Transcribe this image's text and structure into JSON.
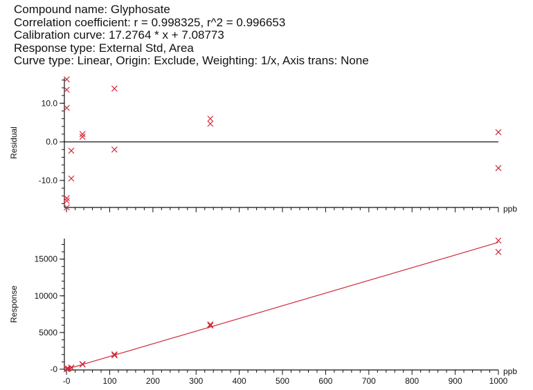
{
  "header": {
    "compound": "Compound name: Glyphosate",
    "correlation": "Correlation coefficient: r = 0.998325, r^2 = 0.996653",
    "calibration": "Calibration curve: 17.2764 * x + 7.08773",
    "response_type": "Response type: External Std, Area",
    "curve_type": "Curve type: Linear, Origin: Exclude, Weighting: 1/x, Axis trans: None"
  },
  "colors": {
    "marker": "#cc2b3a",
    "fit_line": "#cc2b3a",
    "axis": "#111111"
  },
  "chart_data": [
    {
      "type": "scatter",
      "ylabel": "Residual",
      "xunit": "ppb",
      "xlim": [
        -5,
        1000
      ],
      "ylim": [
        -17,
        16.5
      ],
      "yticks": [
        10.0,
        0.0,
        -10.0
      ],
      "ytick_labels": [
        "10.0",
        "0.0",
        "-10.0"
      ],
      "zero_line": true,
      "points": [
        {
          "x": 0.5,
          "y": 16.2
        },
        {
          "x": 0.5,
          "y": 13.5
        },
        {
          "x": 0.5,
          "y": 8.8
        },
        {
          "x": 0.5,
          "y": -14.6
        },
        {
          "x": 0.5,
          "y": -15.3
        },
        {
          "x": 0.5,
          "y": -17.0
        },
        {
          "x": 11,
          "y": -2.3
        },
        {
          "x": 11,
          "y": -9.5
        },
        {
          "x": 37,
          "y": 2.0
        },
        {
          "x": 37,
          "y": 1.3
        },
        {
          "x": 111,
          "y": 13.8
        },
        {
          "x": 111,
          "y": -2.0
        },
        {
          "x": 333,
          "y": 6.0
        },
        {
          "x": 333,
          "y": 4.7
        },
        {
          "x": 1000,
          "y": 2.5
        },
        {
          "x": 1000,
          "y": -6.8
        }
      ]
    },
    {
      "type": "scatter",
      "ylabel": "Response",
      "xunit": "ppb",
      "xlim": [
        -5,
        1000
      ],
      "ylim": [
        -100,
        17800
      ],
      "xticks": [
        0,
        100,
        200,
        300,
        400,
        500,
        600,
        700,
        800,
        900,
        1000
      ],
      "xtick_labels": [
        "-0",
        "100",
        "200",
        "300",
        "400",
        "500",
        "600",
        "700",
        "800",
        "900",
        "1000"
      ],
      "yticks": [
        15000,
        10000,
        5000,
        0
      ],
      "ytick_labels": [
        "15000",
        "10000",
        "5000",
        "-0"
      ],
      "fit": {
        "slope": 17.2764,
        "intercept": 7.08773
      },
      "points": [
        {
          "x": 0.5,
          "y": 10
        },
        {
          "x": 0.5,
          "y": 30
        },
        {
          "x": 0.5,
          "y": 60
        },
        {
          "x": 3.7,
          "y": 70
        },
        {
          "x": 3.7,
          "y": 90
        },
        {
          "x": 11,
          "y": 190
        },
        {
          "x": 11,
          "y": 230
        },
        {
          "x": 37,
          "y": 650
        },
        {
          "x": 37,
          "y": 700
        },
        {
          "x": 111,
          "y": 1900
        },
        {
          "x": 111,
          "y": 2030
        },
        {
          "x": 333,
          "y": 5950
        },
        {
          "x": 333,
          "y": 6100
        },
        {
          "x": 1000,
          "y": 17530
        },
        {
          "x": 1000,
          "y": 15980
        }
      ]
    }
  ]
}
